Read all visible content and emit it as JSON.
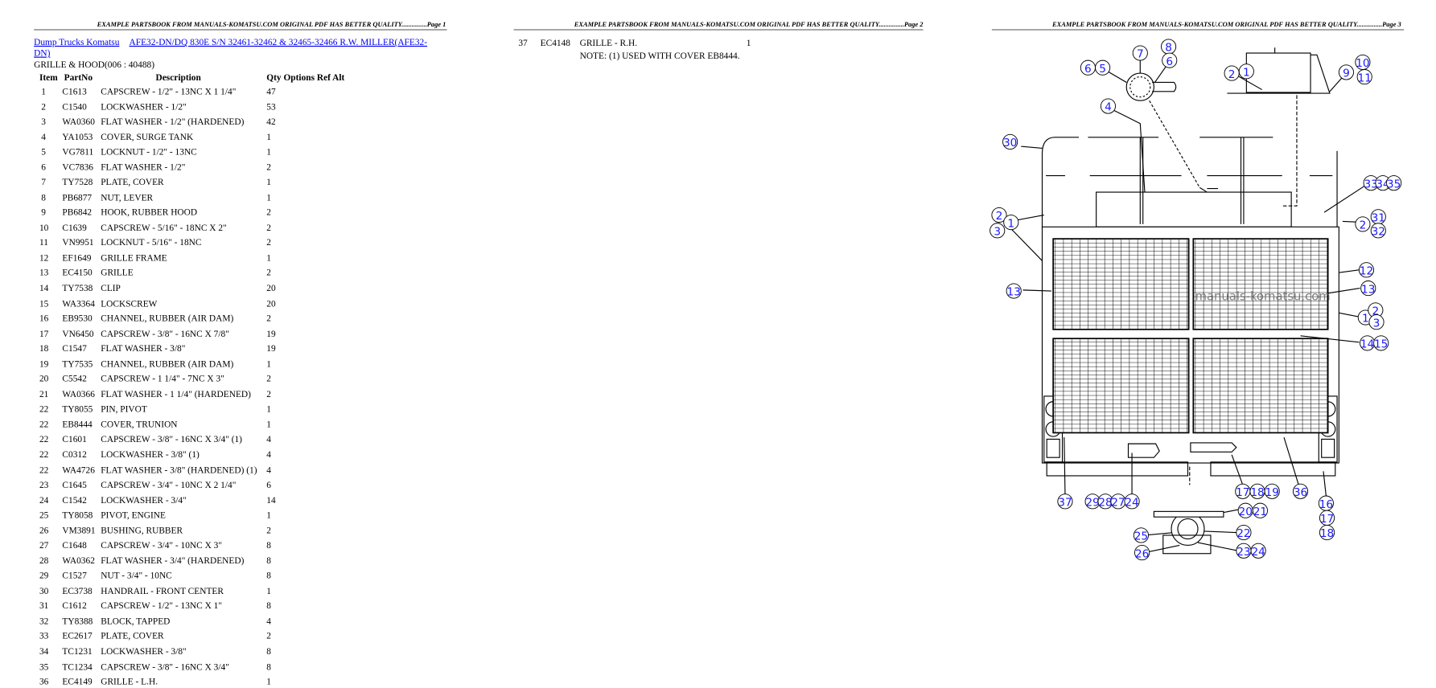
{
  "page1": {
    "header": "EXAMPLE PARTSBOOK FROM MANUALS-KOMATSU.COM ORIGINAL PDF HAS BETTER QUALITY...............Page 1",
    "link_category": "Dump Trucks Komatsu",
    "link_model_line1": "AFE32-DN/DQ 830E S/N 32461-32462 & 32465-32466 R.W. MILLER(AFE32-",
    "link_model_line2": "DN)",
    "section": "GRILLE & HOOD(006 : 40488)",
    "columns": {
      "item": "Item",
      "partno": "PartNo",
      "description": "Description",
      "rest": "Qty Options Ref Alt"
    },
    "rows": [
      [
        "1",
        "C1613",
        "CAPSCREW - 1/2\" - 13NC X 1 1/4\"",
        "47"
      ],
      [
        "2",
        "C1540",
        "LOCKWASHER - 1/2\"",
        "53"
      ],
      [
        "3",
        "WA0360",
        "FLAT WASHER - 1/2\" (HARDENED)",
        "42"
      ],
      [
        "4",
        "YA1053",
        "COVER, SURGE TANK",
        "1"
      ],
      [
        "5",
        "VG7811",
        "LOCKNUT - 1/2\" - 13NC",
        "1"
      ],
      [
        "6",
        "VC7836",
        "FLAT WASHER - 1/2\"",
        "2"
      ],
      [
        "7",
        "TY7528",
        "PLATE, COVER",
        "1"
      ],
      [
        "8",
        "PB6877",
        "NUT, LEVER",
        "1"
      ],
      [
        "9",
        "PB6842",
        "HOOK, RUBBER HOOD",
        "2"
      ],
      [
        "10",
        "C1639",
        "CAPSCREW - 5/16\" - 18NC X 2\"",
        "2"
      ],
      [
        "11",
        "VN9951",
        "LOCKNUT - 5/16\" - 18NC",
        "2"
      ],
      [
        "12",
        "EF1649",
        "GRILLE FRAME",
        "1"
      ],
      [
        "13",
        "EC4150",
        "GRILLE",
        "2"
      ],
      [
        "14",
        "TY7538",
        "CLIP",
        "20"
      ],
      [
        "15",
        "WA3364",
        "LOCKSCREW",
        "20"
      ],
      [
        "16",
        "EB9530",
        "CHANNEL, RUBBER (AIR DAM)",
        "2"
      ],
      [
        "17",
        "VN6450",
        "CAPSCREW - 3/8\" - 16NC X 7/8\"",
        "19"
      ],
      [
        "18",
        "C1547",
        "FLAT WASHER - 3/8\"",
        "19"
      ],
      [
        "19",
        "TY7535",
        "CHANNEL, RUBBER (AIR DAM)",
        "1"
      ],
      [
        "20",
        "C5542",
        "CAPSCREW - 1 1/4\" - 7NC X 3\"",
        "2"
      ],
      [
        "21",
        "WA0366",
        "FLAT WASHER - 1 1/4\" (HARDENED)",
        "2"
      ],
      [
        "22",
        "TY8055",
        "PIN, PIVOT",
        "1"
      ],
      [
        "22",
        "EB8444",
        "COVER, TRUNION",
        "1"
      ],
      [
        "22",
        "C1601",
        "CAPSCREW - 3/8\" - 16NC X 3/4\" (1)",
        "4"
      ],
      [
        "22",
        "C0312",
        "LOCKWASHER - 3/8\" (1)",
        "4"
      ],
      [
        "22",
        "WA4726",
        "FLAT WASHER - 3/8\" (HARDENED) (1)",
        "4"
      ],
      [
        "23",
        "C1645",
        "CAPSCREW - 3/4\" - 10NC X 2 1/4\"",
        "6"
      ],
      [
        "24",
        "C1542",
        "LOCKWASHER - 3/4\"",
        "14"
      ],
      [
        "25",
        "TY8058",
        "PIVOT, ENGINE",
        "1"
      ],
      [
        "26",
        "VM3891",
        "BUSHING, RUBBER",
        "2"
      ],
      [
        "27",
        "C1648",
        "CAPSCREW - 3/4\" - 10NC X 3\"",
        "8"
      ],
      [
        "28",
        "WA0362",
        "FLAT WASHER - 3/4\" (HARDENED)",
        "8"
      ],
      [
        "29",
        "C1527",
        "NUT - 3/4\" - 10NC",
        "8"
      ],
      [
        "30",
        "EC3738",
        "HANDRAIL - FRONT CENTER",
        "1"
      ],
      [
        "31",
        "C1612",
        "CAPSCREW - 1/2\" - 13NC X 1\"",
        "8"
      ],
      [
        "32",
        "TY8388",
        "BLOCK, TAPPED",
        "4"
      ],
      [
        "33",
        "EC2617",
        "PLATE, COVER",
        "2"
      ],
      [
        "34",
        "TC1231",
        "LOCKWASHER - 3/8\"",
        "8"
      ],
      [
        "35",
        "TC1234",
        "CAPSCREW - 3/8\" - 16NC X 3/4\"",
        "8"
      ],
      [
        "36",
        "EC4149",
        "GRILLE - L.H.",
        "1"
      ]
    ]
  },
  "page2": {
    "header": "EXAMPLE PARTSBOOK FROM MANUALS-KOMATSU.COM ORIGINAL PDF HAS BETTER QUALITY...............Page 2",
    "row": [
      "37",
      "EC4148",
      "GRILLE - R.H.",
      "1"
    ],
    "note": "NOTE: (1) USED WITH COVER EB8444."
  },
  "page3": {
    "header": "EXAMPLE PARTSBOOK FROM MANUALS-KOMATSU.COM ORIGINAL PDF HAS BETTER QUALITY...............Page 3",
    "watermark": "manuals-komatsu.com",
    "callout_color": "#1a1aff",
    "callouts": [
      "6",
      "5",
      "7",
      "8",
      "6",
      "2",
      "1",
      "9",
      "10",
      "11",
      "4",
      "30",
      "33",
      "34",
      "35",
      "2",
      "1",
      "3",
      "2",
      "31",
      "32",
      "13",
      "12",
      "13",
      "1",
      "2",
      "3",
      "14",
      "15",
      "37",
      "29",
      "28",
      "27",
      "24",
      "17",
      "18",
      "19",
      "36",
      "16",
      "17",
      "18",
      "20",
      "21",
      "22",
      "25",
      "26",
      "23",
      "24"
    ]
  }
}
